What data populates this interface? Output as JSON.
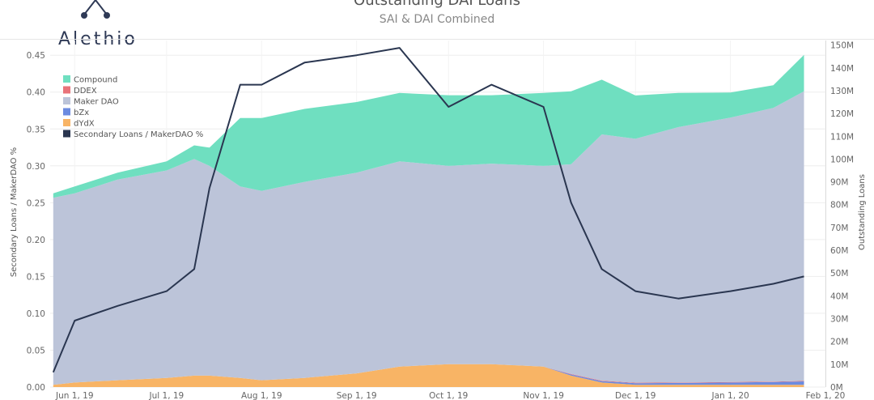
{
  "brand": {
    "name": "Alethio"
  },
  "chart_data": {
    "type": "area",
    "title": "Outstanding DAI Loans",
    "subtitle": "SAI & DAI Combined",
    "ylabel_left": "Secondary Loans / MakerDAO %",
    "ylabel_right": "Outstanding Loans",
    "ylim_left": [
      0,
      0.47
    ],
    "ylim_right": [
      0,
      152
    ],
    "left_ticks": [
      "0.00",
      "0.05",
      "0.10",
      "0.15",
      "0.20",
      "0.25",
      "0.30",
      "0.35",
      "0.40",
      "0.45"
    ],
    "right_ticks": [
      "0M",
      "10M",
      "20M",
      "30M",
      "40M",
      "50M",
      "60M",
      "70M",
      "80M",
      "90M",
      "100M",
      "110M",
      "120M",
      "130M",
      "140M",
      "150M"
    ],
    "x_ticks": [
      "Jun 1, 19",
      "Jul 1, 19",
      "Aug 1, 19",
      "Sep 1, 19",
      "Oct 1, 19",
      "Nov 1, 19",
      "Dec 1, 19",
      "Jan 1, 20",
      "Feb 1, 20"
    ],
    "x_range": [
      "2019-05-24",
      "2020-02-01"
    ],
    "grid": true,
    "legend_position": "top-left",
    "colors": {
      "Compound": "#6fdfc0",
      "DDEX": "#e8737a",
      "Maker DAO": "#bcc4d9",
      "bZx": "#6c8be0",
      "dYdX": "#f8b465",
      "Secondary Loans / MakerDAO %": "#2a3650"
    },
    "legend": [
      "Compound",
      "DDEX",
      "Maker DAO",
      "bZx",
      "dYdX",
      "Secondary Loans / MakerDAO %"
    ],
    "dates": [
      "2019-05-25",
      "2019-06-01",
      "2019-06-15",
      "2019-07-01",
      "2019-07-10",
      "2019-07-15",
      "2019-07-25",
      "2019-08-01",
      "2019-08-15",
      "2019-09-01",
      "2019-09-15",
      "2019-10-01",
      "2019-10-15",
      "2019-11-01",
      "2019-11-10",
      "2019-11-20",
      "2019-12-01",
      "2019-12-15",
      "2020-01-01",
      "2020-01-15",
      "2020-01-25"
    ],
    "series": [
      {
        "name": "dYdX",
        "unit": "M",
        "values": [
          1,
          2,
          3,
          4,
          5,
          5,
          4,
          3,
          4,
          6,
          9,
          10,
          10,
          9,
          5,
          2,
          1,
          1,
          1,
          1,
          1
        ]
      },
      {
        "name": "bZx",
        "unit": "M",
        "values": [
          0,
          0,
          0,
          0,
          0,
          0,
          0,
          0,
          0,
          0,
          0,
          0,
          0,
          0,
          0.5,
          0.6,
          0.7,
          0.8,
          1,
          1.2,
          1.5
        ]
      },
      {
        "name": "DDEX",
        "unit": "M",
        "values": [
          0,
          0,
          0,
          0,
          0,
          0,
          0,
          0,
          0,
          0,
          0,
          0,
          0,
          0,
          0.2,
          0.2,
          0.2,
          0.2,
          0.2,
          0.2,
          0.2
        ]
      },
      {
        "name": "Maker DAO",
        "unit": "M",
        "values": [
          82,
          83,
          88,
          91,
          95,
          92,
          84,
          83,
          86,
          88,
          90,
          87,
          88,
          88,
          92,
          108,
          107,
          112,
          116,
          120,
          127
        ]
      },
      {
        "name": "Compound",
        "unit": "M",
        "values": [
          2,
          3,
          3,
          4,
          6,
          8,
          30,
          32,
          32,
          31,
          30,
          31,
          30,
          32,
          32,
          24,
          19,
          15,
          11,
          10,
          16
        ]
      },
      {
        "name": "Secondary Loans / MakerDAO %",
        "unit": "ratio",
        "values": [
          0.02,
          0.09,
          0.11,
          0.13,
          0.16,
          0.27,
          0.41,
          0.41,
          0.44,
          0.45,
          0.46,
          0.38,
          0.41,
          0.38,
          0.25,
          0.16,
          0.13,
          0.12,
          0.13,
          0.14,
          0.15
        ]
      }
    ]
  }
}
